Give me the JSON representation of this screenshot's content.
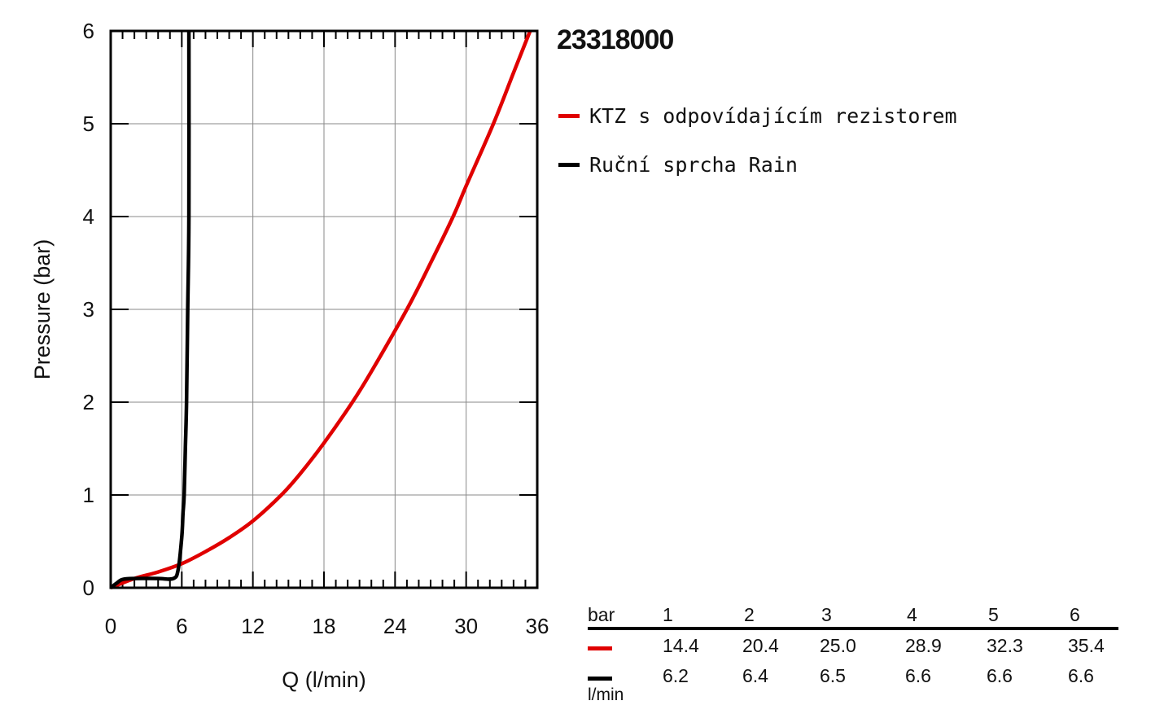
{
  "product_title": "23318000",
  "legend": [
    {
      "label": "KTZ s odpovídajícím rezistorem",
      "color": "#e00000"
    },
    {
      "label": "Ruční sprcha Rain",
      "color": "#000000"
    }
  ],
  "table": {
    "header_label": "bar",
    "pressures": [
      "1",
      "2",
      "3",
      "4",
      "5",
      "6"
    ],
    "rows": [
      {
        "color": "#e00000",
        "values": [
          "14.4",
          "20.4",
          "25.0",
          "28.9",
          "32.3",
          "35.4"
        ]
      },
      {
        "color": "#000000",
        "values": [
          "6.2",
          "6.4",
          "6.5",
          "6.6",
          "6.6",
          "6.6"
        ]
      }
    ],
    "unit_label": "l/min"
  },
  "chart_data": {
    "type": "line",
    "xlabel": "Q (l/min)",
    "ylabel": "Pressure (bar)",
    "xlim": [
      0,
      36
    ],
    "ylim": [
      0,
      6
    ],
    "x_ticks": [
      "0",
      "6",
      "12",
      "18",
      "24",
      "30",
      "36"
    ],
    "y_ticks": [
      "0",
      "1",
      "2",
      "3",
      "4",
      "5",
      "6"
    ],
    "grid": true,
    "legend_position": "right",
    "series": [
      {
        "name": "KTZ s odpovídajícím rezistorem",
        "color": "#e00000",
        "x": [
          0,
          2,
          4,
          6,
          8,
          10,
          12,
          14.4,
          16,
          18,
          20.4,
          22,
          25.0,
          27,
          28.9,
          30,
          32.3,
          34,
          35.4
        ],
        "y": [
          0,
          0.1,
          0.17,
          0.26,
          0.39,
          0.54,
          0.72,
          1.0,
          1.23,
          1.56,
          2.0,
          2.33,
          3.0,
          3.5,
          4.0,
          4.33,
          5.0,
          5.55,
          6.0
        ]
      },
      {
        "name": "Ruční sprcha Rain",
        "color": "#000000",
        "x": [
          0,
          0.5,
          1,
          2,
          4,
          5.3,
          5.7,
          6.0,
          6.1,
          6.2,
          6.3,
          6.4,
          6.5,
          6.6,
          6.6
        ],
        "y": [
          0,
          0.05,
          0.09,
          0.1,
          0.1,
          0.1,
          0.2,
          0.55,
          0.8,
          1.0,
          1.5,
          2.0,
          3.0,
          4.0,
          6.0
        ]
      }
    ]
  }
}
